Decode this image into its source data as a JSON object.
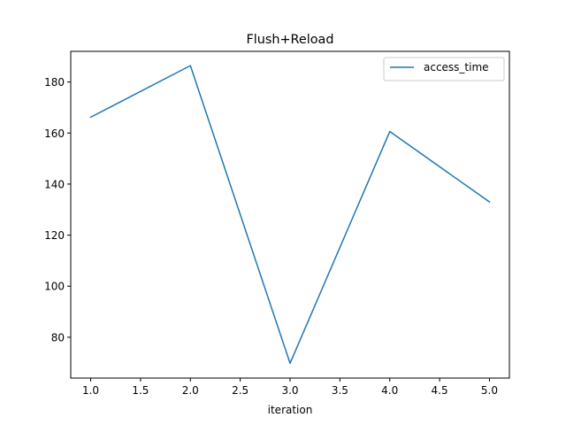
{
  "chart_data": {
    "type": "line",
    "title": "Flush+Reload",
    "xlabel": "iteration",
    "ylabel": "",
    "x": [
      1.0,
      2.0,
      3.0,
      4.0,
      5.0
    ],
    "series": [
      {
        "name": "access_time",
        "values": [
          166.2,
          186.4,
          69.8,
          160.6,
          133.0
        ],
        "color": "#1f77b4"
      }
    ],
    "xlim": [
      0.8,
      5.2
    ],
    "ylim": [
      64.0,
      192.0
    ],
    "xticks": [
      1.0,
      1.5,
      2.0,
      2.5,
      3.0,
      3.5,
      4.0,
      4.5,
      5.0
    ],
    "xtick_labels": [
      "1.0",
      "1.5",
      "2.0",
      "2.5",
      "3.0",
      "3.5",
      "4.0",
      "4.5",
      "5.0"
    ],
    "yticks": [
      80,
      100,
      120,
      140,
      160,
      180
    ],
    "ytick_labels": [
      "80",
      "100",
      "120",
      "140",
      "160",
      "180"
    ],
    "grid": false,
    "legend_position": "top-right"
  }
}
